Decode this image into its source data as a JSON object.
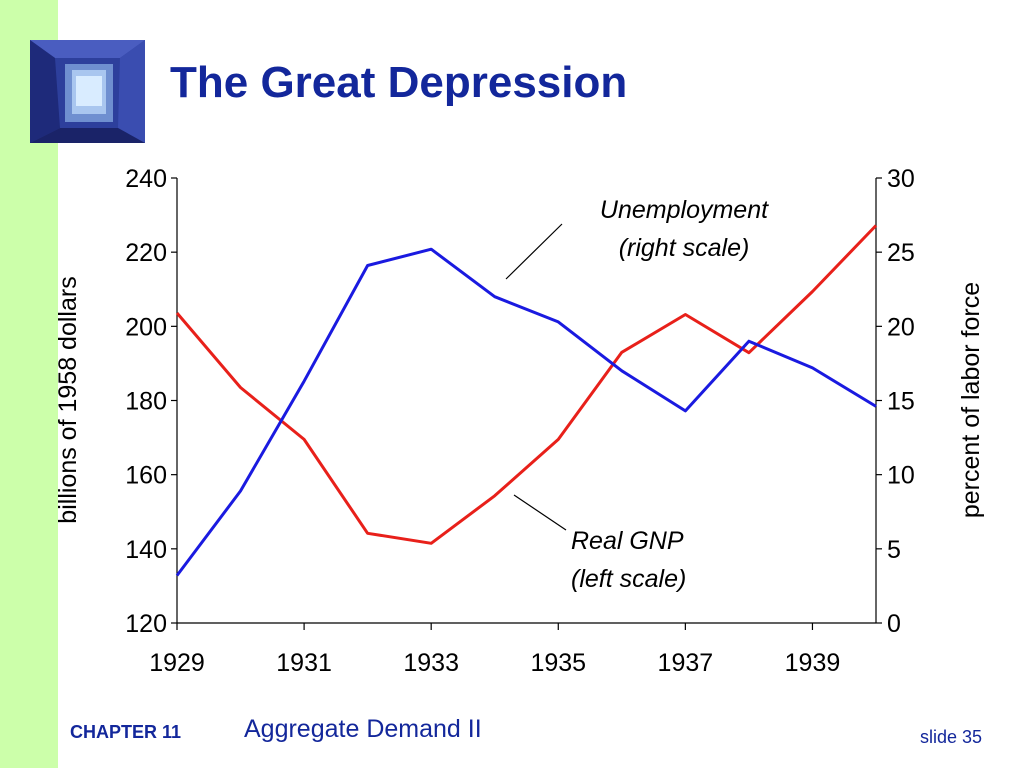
{
  "slide": {
    "title": "The Great Depression",
    "footer_chapter": "CHAPTER 11",
    "footer_topic": "Aggregate Demand II",
    "footer_slide": "slide 35"
  },
  "colors": {
    "title": "#13279b",
    "stripe": "#ccffaa",
    "gnp": "#e8201a",
    "unemployment": "#1a1ae0"
  },
  "chart_data": {
    "type": "line",
    "xlabel": "",
    "ylabel_left": "billions of 1958 dollars",
    "ylabel_right": "percent of labor force",
    "xlim": [
      1929,
      1940
    ],
    "ylim_left": [
      120,
      240
    ],
    "ylim_right": [
      0,
      30
    ],
    "x_ticks": [
      1929,
      1931,
      1933,
      1935,
      1937,
      1939
    ],
    "y_ticks_left": [
      120,
      140,
      160,
      180,
      200,
      220,
      240
    ],
    "y_ticks_right": [
      0,
      5,
      10,
      15,
      20,
      25,
      30
    ],
    "grid": false,
    "series": [
      {
        "axis": "left",
        "color": "#e8201a",
        "x": [
          1929,
          1930,
          1931,
          1932,
          1933,
          1934,
          1935,
          1936,
          1937,
          1938,
          1939,
          1940
        ],
        "values": [
          203.6,
          183.5,
          169.5,
          144.2,
          141.5,
          154.3,
          169.5,
          193.0,
          203.2,
          192.9,
          209.4,
          227.2
        ]
      },
      {
        "axis": "right",
        "color": "#1a1ae0",
        "x": [
          1929,
          1930,
          1931,
          1932,
          1933,
          1934,
          1935,
          1936,
          1937,
          1938,
          1939,
          1940
        ],
        "values": [
          3.2,
          8.9,
          16.3,
          24.1,
          25.2,
          22.0,
          20.3,
          17.0,
          14.3,
          19.0,
          17.2,
          14.6
        ]
      }
    ],
    "annotations": [
      {
        "line1": "Unemployment",
        "line2": "(right scale)"
      },
      {
        "line1": "Real GNP",
        "line2": "(left scale)"
      }
    ]
  }
}
